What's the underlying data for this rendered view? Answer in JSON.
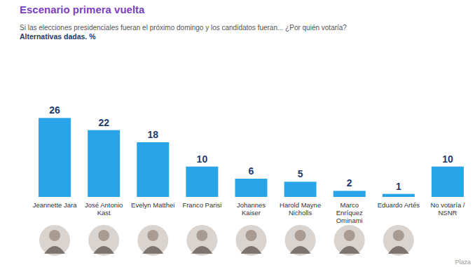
{
  "chart_data": {
    "type": "bar",
    "title": "Escenario primera vuelta",
    "subtitle": "Si las elecciones presidenciales fueran el próximo domingo y los candidatos fueran... ¿Por quién votaría?",
    "y_label": "Alternativas dadas. %",
    "categories": [
      "Jeannette Jara",
      "José Antonio Kast",
      "Evelyn Matthei",
      "Franco Parisi",
      "Johannes Kaiser",
      "Harold Mayne Nicholls",
      "Marco Enríquez Ominami",
      "Eduardo Artés",
      "No votaría / NSNR"
    ],
    "values": [
      26,
      22,
      18,
      10,
      6,
      5,
      2,
      1,
      10
    ],
    "color": "#2aa4e8",
    "ylim": [
      0,
      30
    ],
    "grid": false,
    "tick_labels": false,
    "data_labels": true,
    "annotations": [
      "Plaza"
    ]
  }
}
